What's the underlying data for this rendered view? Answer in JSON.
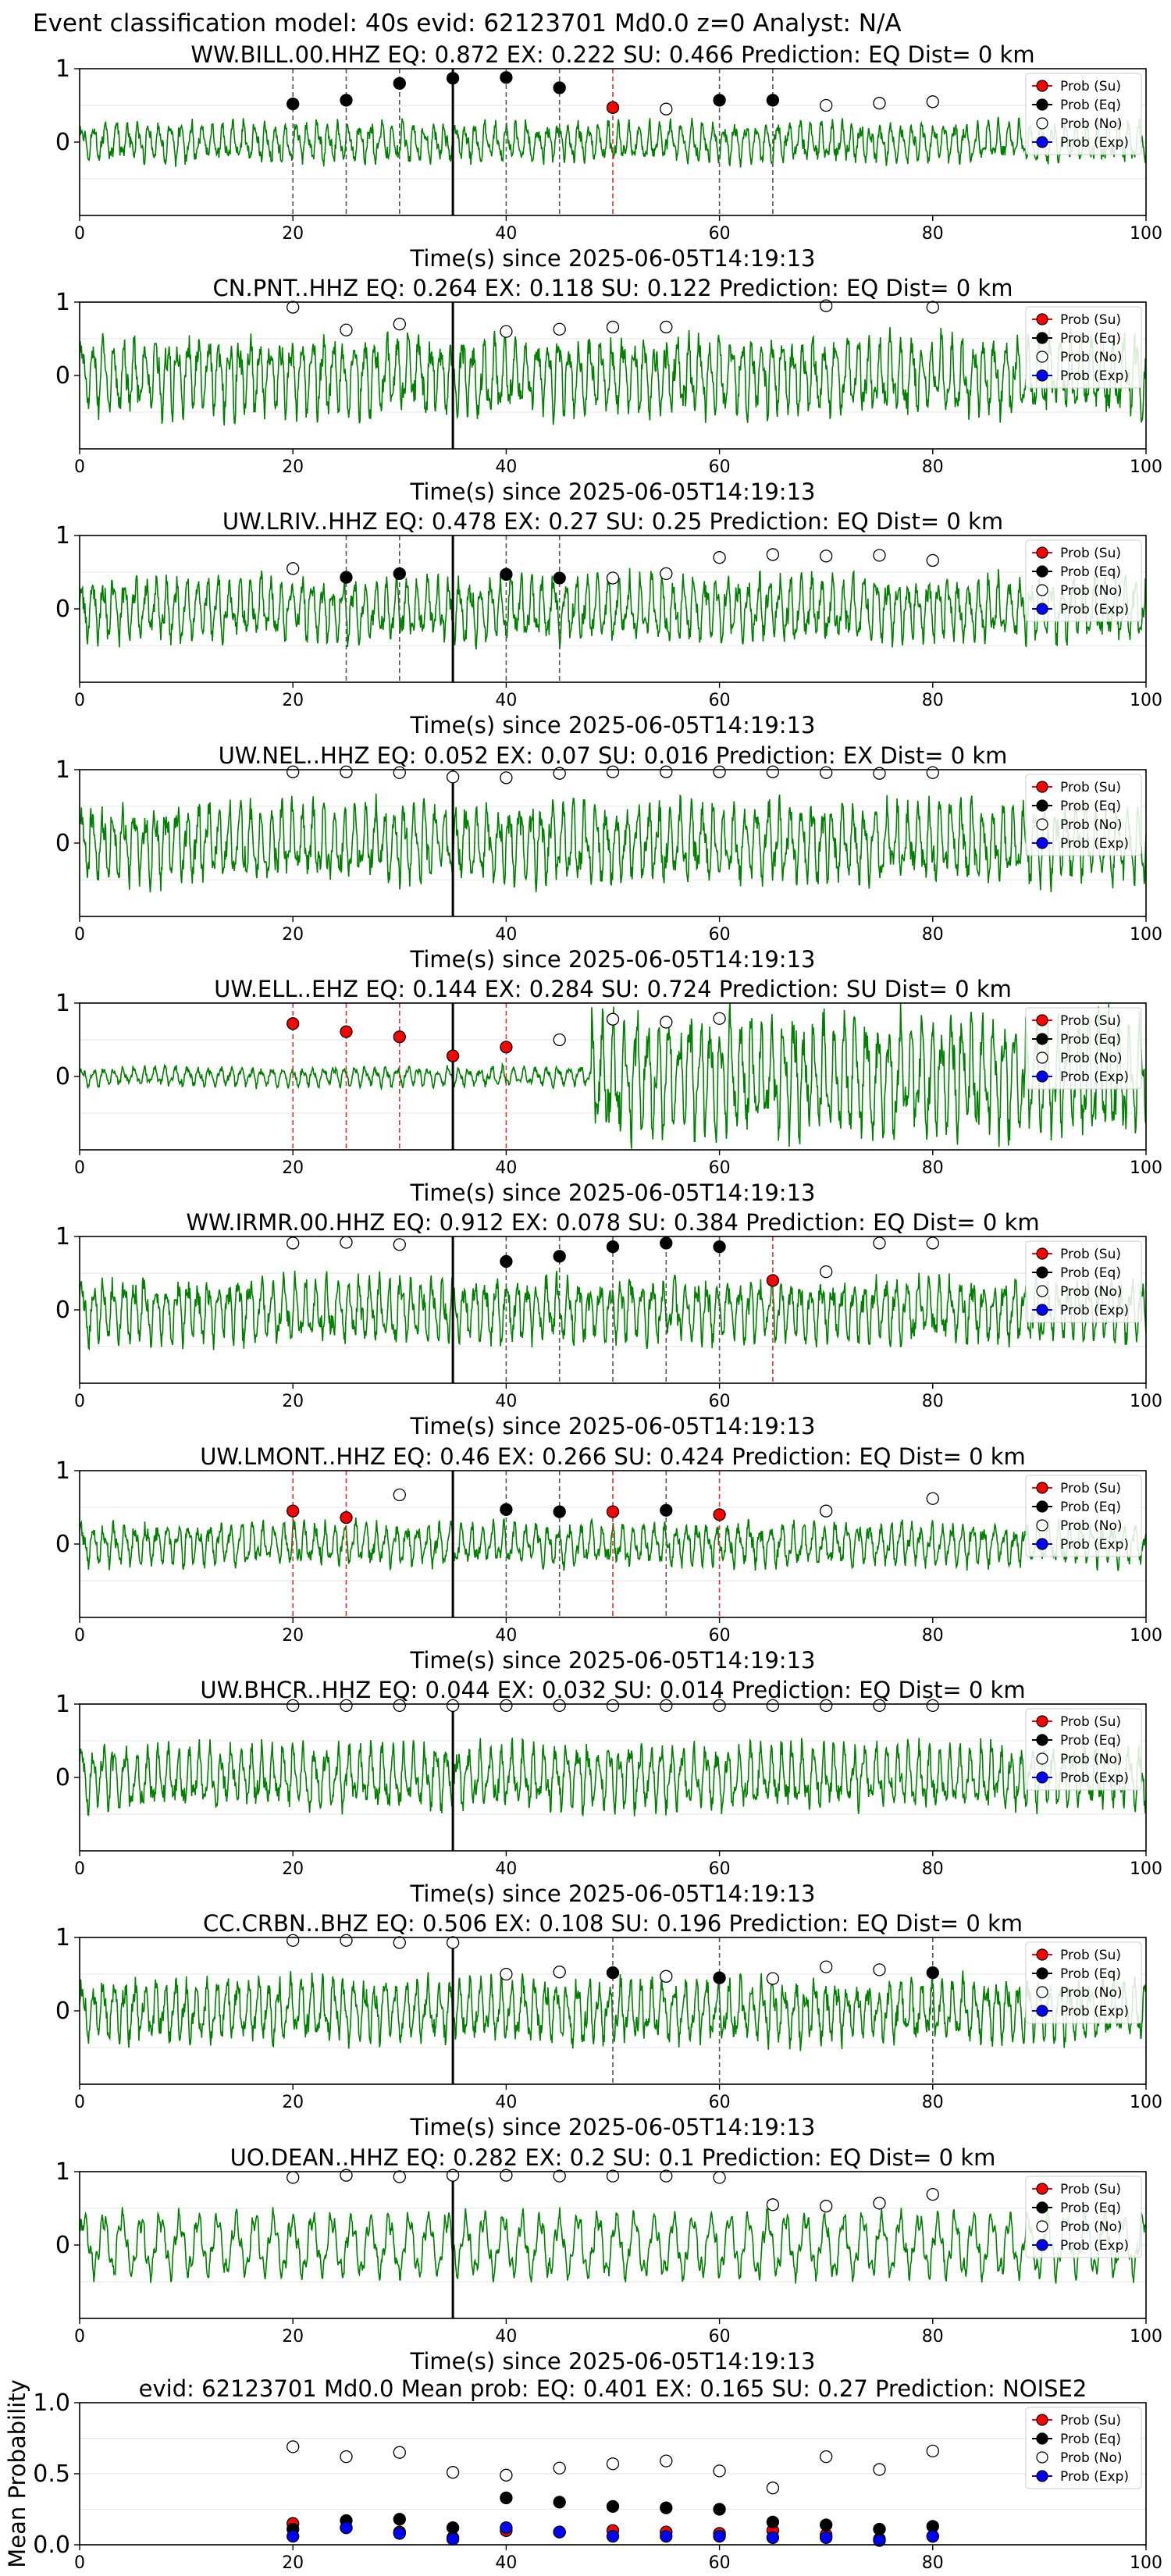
{
  "figure": {
    "suptitle": "Event classification model: 40s evid: 62123701 Md0.0 z=0 Analyst: N/A",
    "legend_labels": [
      "Prob (Su)",
      "Prob (Eq)",
      "Prob (No)",
      "Prob (Exp)"
    ],
    "colors": {
      "su": "#ff0000",
      "eq": "#000000",
      "no": "#ffffff",
      "exp": "#0000ff",
      "waveform": "#008000",
      "marker_edge": "#000000"
    }
  },
  "chart_data": [
    {
      "type": "line",
      "title": "WW.BILL.00.HHZ   EQ: 0.872  EX: 0.222  SU: 0.466   Prediction: EQ    Dist= 0 km",
      "xlabel": "Time(s) since 2025-06-05T14:19:13",
      "ylabel": "",
      "xlim": [
        0,
        100
      ],
      "ylim": [
        -1,
        1
      ],
      "xticks": [
        0,
        20,
        40,
        60,
        80,
        100
      ],
      "yticks": [
        0,
        1
      ],
      "grid": true,
      "legend": "upper-right",
      "vline_x": 35,
      "waveform_amp": 0.28,
      "waveform_seed": 11,
      "points": {
        "su": [
          [
            50,
            0.47
          ]
        ],
        "eq": [
          [
            20,
            0.52
          ],
          [
            25,
            0.57
          ],
          [
            30,
            0.8
          ],
          [
            35,
            0.87
          ],
          [
            40,
            0.88
          ],
          [
            45,
            0.74
          ],
          [
            60,
            0.57
          ],
          [
            65,
            0.57
          ]
        ],
        "no": [
          [
            55,
            0.45
          ],
          [
            70,
            0.5
          ],
          [
            75,
            0.53
          ],
          [
            80,
            0.55
          ]
        ],
        "exp": []
      },
      "dashed_black": [
        20,
        25,
        30,
        40,
        45,
        60,
        65
      ],
      "dashed_red": [
        50
      ]
    },
    {
      "type": "line",
      "title": "CN.PNT..HHZ   EQ: 0.264  EX: 0.118  SU: 0.122   Prediction: EQ    Dist= 0 km",
      "xlabel": "Time(s) since 2025-06-05T14:19:13",
      "ylabel": "",
      "xlim": [
        0,
        100
      ],
      "ylim": [
        -1,
        1
      ],
      "xticks": [
        0,
        20,
        40,
        60,
        80,
        100
      ],
      "yticks": [
        0,
        1
      ],
      "grid": true,
      "legend": "upper-right",
      "vline_x": 35,
      "waveform_amp": 0.55,
      "waveform_seed": 23,
      "points": {
        "su": [],
        "eq": [],
        "no": [
          [
            20,
            0.93
          ],
          [
            25,
            0.62
          ],
          [
            30,
            0.7
          ],
          [
            40,
            0.6
          ],
          [
            45,
            0.63
          ],
          [
            50,
            0.66
          ],
          [
            55,
            0.66
          ],
          [
            70,
            0.95
          ],
          [
            80,
            0.93
          ]
        ],
        "exp": []
      },
      "dashed_black": [],
      "dashed_red": []
    },
    {
      "type": "line",
      "title": "UW.LRIV..HHZ   EQ: 0.478  EX: 0.27  SU: 0.25   Prediction: EQ    Dist= 0 km",
      "xlabel": "Time(s) since 2025-06-05T14:19:13",
      "ylabel": "",
      "xlim": [
        0,
        100
      ],
      "ylim": [
        -1,
        1
      ],
      "xticks": [
        0,
        20,
        40,
        60,
        80,
        100
      ],
      "yticks": [
        0,
        1
      ],
      "grid": true,
      "legend": "upper-right",
      "vline_x": 35,
      "waveform_amp": 0.45,
      "waveform_seed": 37,
      "points": {
        "su": [],
        "eq": [
          [
            25,
            0.43
          ],
          [
            30,
            0.48
          ],
          [
            40,
            0.47
          ],
          [
            45,
            0.42
          ]
        ],
        "no": [
          [
            20,
            0.55
          ],
          [
            50,
            0.42
          ],
          [
            55,
            0.48
          ],
          [
            60,
            0.7
          ],
          [
            65,
            0.74
          ],
          [
            70,
            0.72
          ],
          [
            75,
            0.73
          ],
          [
            80,
            0.66
          ]
        ],
        "exp": []
      },
      "dashed_black": [
        25,
        30,
        40,
        45
      ],
      "dashed_red": []
    },
    {
      "type": "line",
      "title": "UW.NEL..HHZ   EQ: 0.052  EX: 0.07  SU: 0.016   Prediction: EX    Dist= 0 km",
      "xlabel": "Time(s) since 2025-06-05T14:19:13",
      "ylabel": "",
      "xlim": [
        0,
        100
      ],
      "ylim": [
        -1,
        1
      ],
      "xticks": [
        0,
        20,
        40,
        60,
        80,
        100
      ],
      "yticks": [
        0,
        1
      ],
      "grid": true,
      "legend": "upper-right",
      "vline_x": 35,
      "waveform_amp": 0.55,
      "waveform_seed": 41,
      "points": {
        "su": [],
        "eq": [],
        "no": [
          [
            20,
            0.97
          ],
          [
            25,
            0.97
          ],
          [
            30,
            0.96
          ],
          [
            35,
            0.9
          ],
          [
            40,
            0.89
          ],
          [
            45,
            0.95
          ],
          [
            50,
            0.97
          ],
          [
            55,
            0.97
          ],
          [
            60,
            0.97
          ],
          [
            65,
            0.97
          ],
          [
            70,
            0.96
          ],
          [
            75,
            0.95
          ],
          [
            80,
            0.96
          ]
        ],
        "exp": []
      },
      "dashed_black": [],
      "dashed_red": []
    },
    {
      "type": "line",
      "title": "UW.ELL..EHZ   EQ: 0.144  EX: 0.284  SU: 0.724   Prediction: SU    Dist= 0 km",
      "xlabel": "Time(s) since 2025-06-05T14:19:13",
      "ylabel": "",
      "xlim": [
        0,
        100
      ],
      "ylim": [
        -1,
        1
      ],
      "xticks": [
        0,
        20,
        40,
        60,
        80,
        100
      ],
      "yticks": [
        0,
        1
      ],
      "grid": true,
      "legend": "upper-right",
      "vline_x": 35,
      "waveform_amp": 0.14,
      "waveform_amp_late": 0.85,
      "waveform_burst_x": 48,
      "waveform_seed": 53,
      "points": {
        "su": [
          [
            20,
            0.72
          ],
          [
            25,
            0.61
          ],
          [
            30,
            0.54
          ],
          [
            35,
            0.28
          ],
          [
            40,
            0.4
          ]
        ],
        "eq": [],
        "no": [
          [
            45,
            0.5
          ],
          [
            50,
            0.78
          ],
          [
            55,
            0.74
          ],
          [
            60,
            0.79
          ]
        ],
        "exp": []
      },
      "dashed_black": [],
      "dashed_red": [
        20,
        25,
        30,
        40
      ]
    },
    {
      "type": "line",
      "title": "WW.IRMR.00.HHZ   EQ: 0.912  EX: 0.078  SU: 0.384   Prediction: EQ    Dist= 0 km",
      "xlabel": "Time(s) since 2025-06-05T14:19:13",
      "ylabel": "",
      "xlim": [
        0,
        100
      ],
      "ylim": [
        -1,
        1
      ],
      "xticks": [
        0,
        20,
        40,
        60,
        80,
        100
      ],
      "yticks": [
        0,
        1
      ],
      "grid": true,
      "legend": "upper-right",
      "vline_x": 35,
      "waveform_amp": 0.45,
      "waveform_seed": 67,
      "points": {
        "su": [
          [
            65,
            0.4
          ]
        ],
        "eq": [
          [
            40,
            0.66
          ],
          [
            45,
            0.73
          ],
          [
            50,
            0.86
          ],
          [
            55,
            0.91
          ],
          [
            60,
            0.86
          ]
        ],
        "no": [
          [
            20,
            0.91
          ],
          [
            25,
            0.92
          ],
          [
            30,
            0.89
          ],
          [
            70,
            0.52
          ],
          [
            75,
            0.91
          ],
          [
            80,
            0.91
          ]
        ],
        "exp": []
      },
      "dashed_black": [
        40,
        45,
        50,
        55,
        60
      ],
      "dashed_red": [
        65
      ]
    },
    {
      "type": "line",
      "title": "UW.LMONT..HHZ   EQ: 0.46  EX: 0.266  SU: 0.424   Prediction: EQ    Dist= 0 km",
      "xlabel": "Time(s) since 2025-06-05T14:19:13",
      "ylabel": "",
      "xlim": [
        0,
        100
      ],
      "ylim": [
        -1,
        1
      ],
      "xticks": [
        0,
        20,
        40,
        60,
        80,
        100
      ],
      "yticks": [
        0,
        1
      ],
      "grid": true,
      "legend": "upper-right",
      "vline_x": 35,
      "waveform_amp": 0.3,
      "waveform_seed": 79,
      "points": {
        "su": [
          [
            20,
            0.45
          ],
          [
            25,
            0.36
          ],
          [
            50,
            0.44
          ],
          [
            60,
            0.4
          ]
        ],
        "eq": [
          [
            40,
            0.47
          ],
          [
            45,
            0.44
          ],
          [
            55,
            0.46
          ]
        ],
        "no": [
          [
            30,
            0.67
          ],
          [
            70,
            0.45
          ],
          [
            80,
            0.62
          ]
        ],
        "exp": []
      },
      "dashed_black": [
        40,
        45,
        55
      ],
      "dashed_red": [
        20,
        25,
        50,
        60
      ]
    },
    {
      "type": "line",
      "title": "UW.BHCR..HHZ   EQ: 0.044  EX: 0.032  SU: 0.014   Prediction: EQ    Dist= 0 km",
      "xlabel": "Time(s) since 2025-06-05T14:19:13",
      "ylabel": "",
      "xlim": [
        0,
        100
      ],
      "ylim": [
        -1,
        1
      ],
      "xticks": [
        0,
        20,
        40,
        60,
        80,
        100
      ],
      "yticks": [
        0,
        1
      ],
      "grid": true,
      "legend": "upper-right",
      "vline_x": 35,
      "waveform_amp": 0.45,
      "waveform_seed": 83,
      "points": {
        "su": [],
        "eq": [],
        "no": [
          [
            20,
            0.98
          ],
          [
            25,
            0.98
          ],
          [
            30,
            0.98
          ],
          [
            35,
            0.98
          ],
          [
            40,
            0.98
          ],
          [
            45,
            0.98
          ],
          [
            50,
            0.98
          ],
          [
            55,
            0.98
          ],
          [
            60,
            0.98
          ],
          [
            65,
            0.98
          ],
          [
            70,
            0.98
          ],
          [
            75,
            0.98
          ],
          [
            80,
            0.98
          ]
        ],
        "exp": []
      },
      "dashed_black": [],
      "dashed_red": []
    },
    {
      "type": "line",
      "title": "CC.CRBN..BHZ   EQ: 0.506  EX: 0.108  SU: 0.196   Prediction: EQ    Dist= 0 km",
      "xlabel": "Time(s) since 2025-06-05T14:19:13",
      "ylabel": "",
      "xlim": [
        0,
        100
      ],
      "ylim": [
        -1,
        1
      ],
      "xticks": [
        0,
        20,
        40,
        60,
        80,
        100
      ],
      "yticks": [
        0,
        1
      ],
      "grid": true,
      "legend": "upper-right",
      "vline_x": 35,
      "waveform_amp": 0.45,
      "waveform_seed": 97,
      "points": {
        "su": [],
        "eq": [
          [
            50,
            0.52
          ],
          [
            60,
            0.45
          ],
          [
            80,
            0.52
          ]
        ],
        "no": [
          [
            20,
            0.96
          ],
          [
            25,
            0.96
          ],
          [
            30,
            0.93
          ],
          [
            35,
            0.93
          ],
          [
            40,
            0.5
          ],
          [
            45,
            0.53
          ],
          [
            55,
            0.47
          ],
          [
            65,
            0.44
          ],
          [
            70,
            0.6
          ],
          [
            75,
            0.56
          ]
        ],
        "exp": []
      },
      "dashed_black": [
        50,
        60,
        80
      ],
      "dashed_red": []
    },
    {
      "type": "line",
      "title": "UO.DEAN..HHZ   EQ: 0.282  EX: 0.2  SU: 0.1   Prediction: EQ    Dist= 0 km",
      "xlabel": "Time(s) since 2025-06-05T14:19:13",
      "ylabel": "",
      "xlim": [
        0,
        100
      ],
      "ylim": [
        -1,
        1
      ],
      "xticks": [
        0,
        20,
        40,
        60,
        80,
        100
      ],
      "yticks": [
        0,
        1
      ],
      "grid": true,
      "legend": "upper-right",
      "vline_x": 35,
      "waveform_amp": 0.5,
      "waveform_seed": 101,
      "waveform_smooth": true,
      "points": {
        "su": [],
        "eq": [],
        "no": [
          [
            20,
            0.92
          ],
          [
            25,
            0.95
          ],
          [
            30,
            0.93
          ],
          [
            35,
            0.95
          ],
          [
            40,
            0.95
          ],
          [
            45,
            0.94
          ],
          [
            50,
            0.94
          ],
          [
            55,
            0.94
          ],
          [
            60,
            0.92
          ],
          [
            65,
            0.55
          ],
          [
            70,
            0.53
          ],
          [
            75,
            0.57
          ],
          [
            80,
            0.69
          ]
        ],
        "exp": []
      },
      "dashed_black": [],
      "dashed_red": []
    },
    {
      "type": "scatter",
      "title": "evid: 62123701  Md0.0   Mean prob:   EQ: 0.401  EX: 0.165  SU: 0.27   Prediction: NOISE2",
      "xlabel": "",
      "ylabel": "Mean Probability",
      "xlim": [
        0,
        100
      ],
      "ylim": [
        0,
        1
      ],
      "xticks": [
        0,
        20,
        40,
        60,
        80,
        100
      ],
      "yticks": [
        0.0,
        0.5,
        1.0
      ],
      "grid": true,
      "legend": "upper-right",
      "points": {
        "su": [
          [
            20,
            0.15
          ],
          [
            25,
            0.12
          ],
          [
            30,
            0.09
          ],
          [
            35,
            0.05
          ],
          [
            40,
            0.1
          ],
          [
            45,
            0.09
          ],
          [
            50,
            0.1
          ],
          [
            55,
            0.09
          ],
          [
            60,
            0.08
          ],
          [
            65,
            0.1
          ],
          [
            70,
            0.07
          ],
          [
            75,
            0.04
          ],
          [
            80,
            0.06
          ]
        ],
        "eq": [
          [
            20,
            0.11
          ],
          [
            25,
            0.17
          ],
          [
            30,
            0.18
          ],
          [
            35,
            0.12
          ],
          [
            40,
            0.33
          ],
          [
            45,
            0.3
          ],
          [
            50,
            0.27
          ],
          [
            55,
            0.26
          ],
          [
            60,
            0.25
          ],
          [
            65,
            0.16
          ],
          [
            70,
            0.14
          ],
          [
            75,
            0.11
          ],
          [
            80,
            0.13
          ]
        ],
        "no": [
          [
            20,
            0.69
          ],
          [
            25,
            0.62
          ],
          [
            30,
            0.65
          ],
          [
            35,
            0.51
          ],
          [
            40,
            0.49
          ],
          [
            45,
            0.54
          ],
          [
            50,
            0.57
          ],
          [
            55,
            0.59
          ],
          [
            60,
            0.52
          ],
          [
            65,
            0.4
          ],
          [
            70,
            0.62
          ],
          [
            75,
            0.53
          ],
          [
            80,
            0.66
          ]
        ],
        "exp": [
          [
            20,
            0.06
          ],
          [
            25,
            0.12
          ],
          [
            30,
            0.08
          ],
          [
            35,
            0.04
          ],
          [
            40,
            0.12
          ],
          [
            45,
            0.09
          ],
          [
            50,
            0.06
          ],
          [
            55,
            0.06
          ],
          [
            60,
            0.06
          ],
          [
            65,
            0.05
          ],
          [
            70,
            0.05
          ],
          [
            75,
            0.03
          ],
          [
            80,
            0.06
          ]
        ]
      }
    }
  ]
}
